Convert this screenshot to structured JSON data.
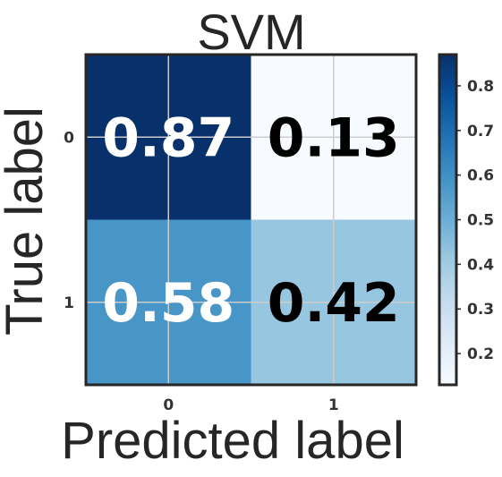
{
  "chart_data": {
    "type": "heatmap",
    "title": "SVM",
    "xlabel": "Predicted label",
    "ylabel": "True label",
    "x_categories": [
      "0",
      "1"
    ],
    "y_categories": [
      "0",
      "1"
    ],
    "values": [
      [
        0.87,
        0.13
      ],
      [
        0.58,
        0.42
      ]
    ],
    "value_labels": [
      [
        "0.87",
        "0.13"
      ],
      [
        "0.58",
        "0.42"
      ]
    ],
    "colormap": "Blues",
    "colorbar": {
      "range": [
        0.13,
        0.87
      ],
      "ticks": [
        0.2,
        0.3,
        0.4,
        0.5,
        0.6,
        0.7,
        0.8
      ],
      "tick_labels": [
        "0.2",
        "0.3",
        "0.4",
        "0.5",
        "0.6",
        "0.7",
        "0.8"
      ]
    },
    "grid": true,
    "colors": {
      "grid": "#cccccc",
      "frame": "#262626",
      "text_on_dark": "#ffffff",
      "text_on_light": "#000000",
      "axis_text": "#333333"
    }
  }
}
